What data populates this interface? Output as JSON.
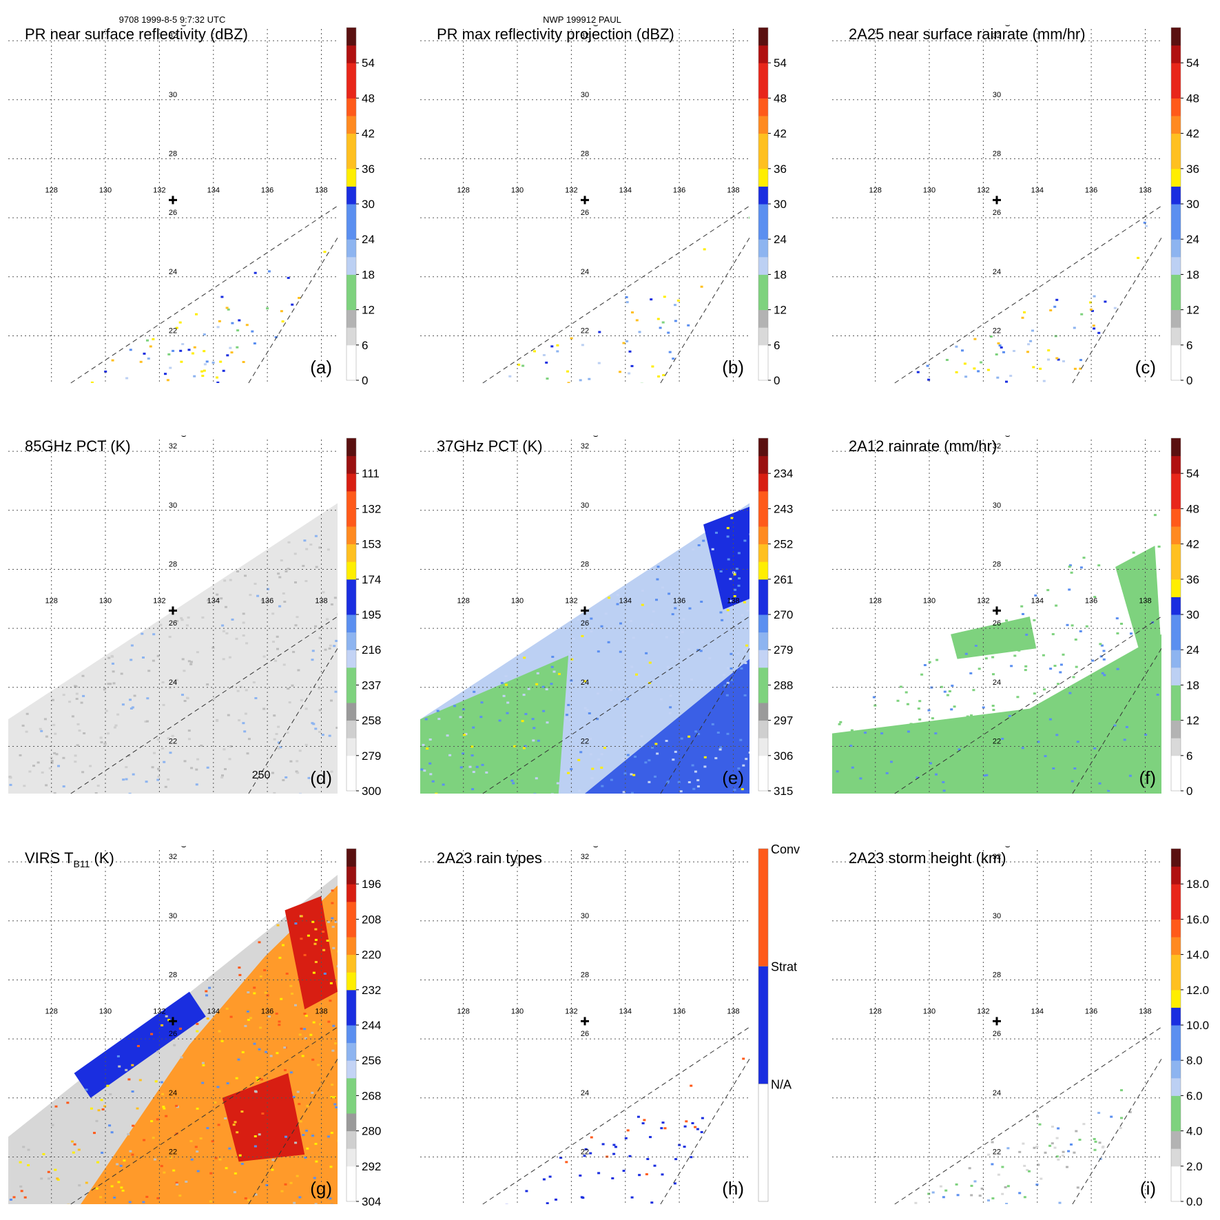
{
  "figure": {
    "header_left": "9708 1999-8-5 9:7:32 UTC",
    "header_center": "NWP 199912 PAUL",
    "lon_ticks": [
      "128",
      "130",
      "132",
      "134",
      "136",
      "138"
    ],
    "lat_ticks": [
      "22",
      "24",
      "26",
      "28",
      "30",
      "32"
    ],
    "storm_center": {
      "lon": 132.5,
      "lat": 26.6
    },
    "map_extent": {
      "lon": [
        126.4,
        138.6
      ],
      "lat": [
        20.4,
        32.4
      ]
    }
  },
  "chart_data": [
    {
      "type": "heatmap",
      "title": "PR near surface reflectivity (dBZ)",
      "label": "(a)",
      "colorbar_ticks": [
        "0",
        "6",
        "12",
        "18",
        "24",
        "30",
        "36",
        "42",
        "48",
        "54"
      ],
      "colorbar_range": [
        0,
        60
      ],
      "coverage": "pr-swath",
      "legend_colors": [
        "#ffffff",
        "#d9d9d9",
        "#b3b3b3",
        "#7ed27e",
        "#bcd0f3",
        "#5b8ff0",
        "#1a2ee0",
        "#ffee00",
        "#ffa030",
        "#ff6a1a",
        "#e8261a",
        "#b01010",
        "#5a1010"
      ]
    },
    {
      "type": "heatmap",
      "title": "PR max reflectivity projection (dBZ)",
      "label": "(b)",
      "colorbar_ticks": [
        "0",
        "6",
        "12",
        "18",
        "24",
        "30",
        "36",
        "42",
        "48",
        "54"
      ],
      "colorbar_range": [
        0,
        60
      ],
      "coverage": "pr-swath"
    },
    {
      "type": "heatmap",
      "title": "2A25 near surface rainrate (mm/hr)",
      "label": "(c)",
      "colorbar_ticks": [
        "0",
        "6",
        "12",
        "18",
        "24",
        "30",
        "36",
        "42",
        "48",
        "54"
      ],
      "colorbar_range": [
        0,
        60
      ],
      "coverage": "pr-swath"
    },
    {
      "type": "heatmap",
      "title": "85GHz PCT (K)",
      "label": "(d)",
      "colorbar_ticks": [
        "300",
        "279",
        "258",
        "237",
        "216",
        "195",
        "174",
        "153",
        "132",
        "111"
      ],
      "colorbar_range": [
        300,
        90
      ],
      "coverage": "tmi-swath",
      "contour_label": "250"
    },
    {
      "type": "heatmap",
      "title": "37GHz PCT (K)",
      "label": "(e)",
      "colorbar_ticks": [
        "315",
        "306",
        "297",
        "288",
        "279",
        "270",
        "261",
        "252",
        "243",
        "234"
      ],
      "colorbar_range": [
        315,
        225
      ],
      "coverage": "tmi-swath"
    },
    {
      "type": "heatmap",
      "title": "2A12 rainrate (mm/hr)",
      "label": "(f)",
      "colorbar_ticks": [
        "0",
        "6",
        "12",
        "18",
        "24",
        "30",
        "36",
        "42",
        "48",
        "54"
      ],
      "colorbar_range": [
        0,
        60
      ],
      "coverage": "tmi-swath"
    },
    {
      "type": "heatmap",
      "title": "VIRS T",
      "title_sub": "B11",
      "title_suffix": " (K)",
      "label": "(g)",
      "colorbar_ticks": [
        "304",
        "292",
        "280",
        "268",
        "256",
        "244",
        "232",
        "220",
        "208",
        "196"
      ],
      "colorbar_range": [
        304,
        184
      ],
      "coverage": "virs-swath"
    },
    {
      "type": "heatmap",
      "title": "2A23 rain types",
      "label": "(h)",
      "categories": [
        "N/A",
        "Strat",
        "Conv"
      ],
      "category_colors": [
        "#ffffff",
        "#1a2ee0",
        "#ff5a1a"
      ],
      "coverage": "pr-swath"
    },
    {
      "type": "heatmap",
      "title": "2A23 storm height (km)",
      "label": "(i)",
      "colorbar_ticks": [
        "0.0",
        "2.0",
        "4.0",
        "6.0",
        "8.0",
        "10.0",
        "12.0",
        "14.0",
        "16.0",
        "18.0"
      ],
      "colorbar_range": [
        0,
        20
      ],
      "coverage": "pr-swath"
    }
  ]
}
